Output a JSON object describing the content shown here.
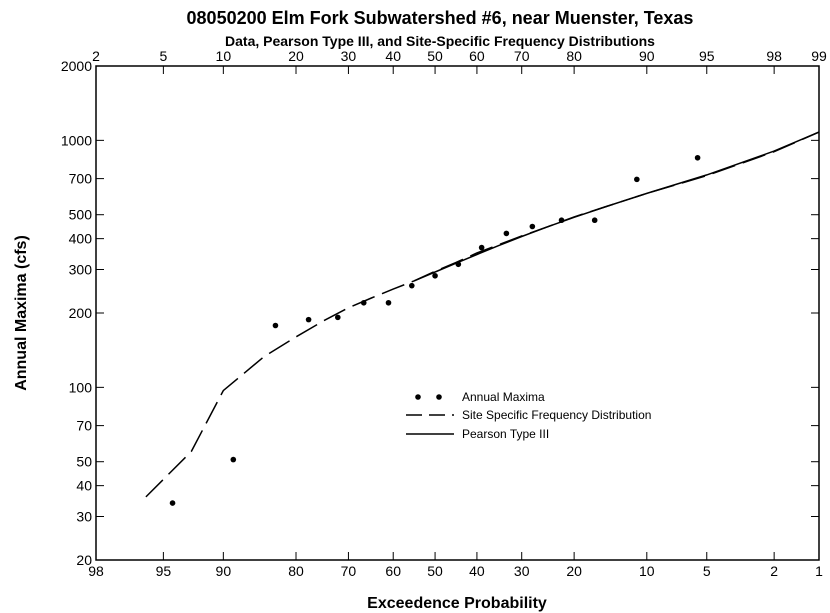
{
  "chart_data": {
    "type": "scatter",
    "title": "08050200 Elm Fork Subwatershed #6, near Muenster, Texas",
    "subtitle": "Data, Pearson Type III, and Site-Specific Frequency Distributions",
    "xlabel": "Exceedence Probability",
    "ylabel": "Annual Maxima (cfs)",
    "x_scale": "normal-probability",
    "y_scale": "log",
    "ylim": [
      20,
      2000
    ],
    "bottom_ticks": [
      98,
      95,
      90,
      80,
      70,
      60,
      50,
      40,
      30,
      20,
      10,
      5,
      2,
      1
    ],
    "top_ticks": [
      2,
      5,
      10,
      20,
      30,
      40,
      50,
      60,
      70,
      80,
      90,
      95,
      98,
      99
    ],
    "y_ticks": [
      20,
      30,
      40,
      50,
      70,
      100,
      200,
      300,
      400,
      500,
      700,
      1000,
      2000
    ],
    "legend_position": "center-right",
    "series": [
      {
        "name": "Annual Maxima",
        "kind": "points",
        "x": [
          94.4,
          88.9,
          83.3,
          77.8,
          72.2,
          66.7,
          61.1,
          55.6,
          50.0,
          44.4,
          38.9,
          33.3,
          27.8,
          22.2,
          16.7,
          11.1,
          5.6
        ],
        "y": [
          34,
          51,
          178,
          188,
          192,
          220,
          220,
          258,
          283,
          315,
          368,
          420,
          448,
          475,
          475,
          695,
          850
        ]
      },
      {
        "name": "Site Specific Frequency Distribution",
        "kind": "dashed",
        "x": [
          96,
          93,
          90,
          85,
          80,
          75,
          70,
          65,
          60,
          55,
          50,
          45,
          40,
          35,
          30,
          25,
          20,
          15,
          10,
          5,
          2,
          1
        ],
        "y": [
          36,
          55,
          97,
          133,
          160,
          186,
          210,
          230,
          250,
          270,
          295,
          320,
          350,
          378,
          410,
          445,
          490,
          540,
          610,
          720,
          900,
          1080
        ]
      },
      {
        "name": "Pearson Type III",
        "kind": "solid",
        "x": [
          55,
          50,
          45,
          40,
          35,
          30,
          25,
          20,
          15,
          10,
          5,
          2,
          1
        ],
        "y": [
          270,
          293,
          318,
          345,
          375,
          408,
          445,
          488,
          540,
          610,
          725,
          905,
          1080
        ]
      }
    ]
  }
}
